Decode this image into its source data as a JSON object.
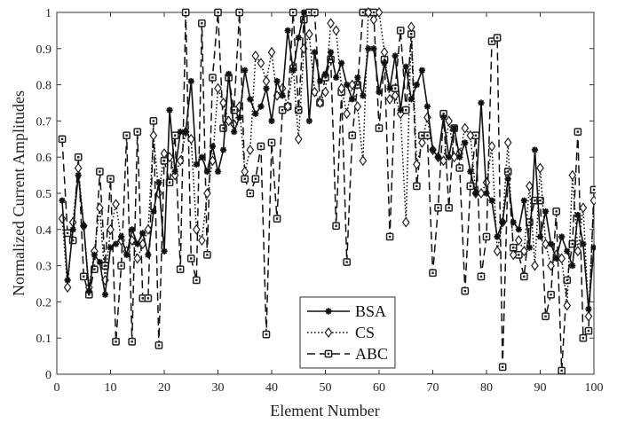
{
  "chart_data": {
    "type": "line",
    "xlabel": "Element Number",
    "ylabel": "Normalized Current Amplitudes",
    "xlim": [
      0,
      100
    ],
    "ylim": [
      0,
      1
    ],
    "xticks": [
      0,
      10,
      20,
      30,
      40,
      50,
      60,
      70,
      80,
      90,
      100
    ],
    "yticks": [
      0,
      0.1,
      0.2,
      0.3,
      0.4,
      0.5,
      0.6,
      0.7,
      0.8,
      0.9,
      1
    ],
    "grid": false,
    "legend_position": "bottom-center",
    "x": [
      1,
      2,
      3,
      4,
      5,
      6,
      7,
      8,
      9,
      10,
      11,
      12,
      13,
      14,
      15,
      16,
      17,
      18,
      19,
      20,
      21,
      22,
      23,
      24,
      25,
      26,
      27,
      28,
      29,
      30,
      31,
      32,
      33,
      34,
      35,
      36,
      37,
      38,
      39,
      40,
      41,
      42,
      43,
      44,
      45,
      46,
      47,
      48,
      49,
      50,
      51,
      52,
      53,
      54,
      55,
      56,
      57,
      58,
      59,
      60,
      61,
      62,
      63,
      64,
      65,
      66,
      67,
      68,
      69,
      70,
      71,
      72,
      73,
      74,
      75,
      76,
      77,
      78,
      79,
      80,
      81,
      82,
      83,
      84,
      85,
      86,
      87,
      88,
      89,
      90,
      91,
      92,
      93,
      94,
      95,
      96,
      97,
      98,
      99,
      100
    ],
    "series": [
      {
        "name": "BSA",
        "line_style": "solid",
        "marker": "asterisk",
        "values": [
          0.48,
          0.26,
          0.4,
          0.55,
          0.41,
          0.23,
          0.33,
          0.31,
          0.22,
          0.35,
          0.36,
          0.38,
          0.33,
          0.4,
          0.36,
          0.39,
          0.33,
          0.45,
          0.53,
          0.34,
          0.73,
          0.56,
          0.67,
          0.67,
          0.81,
          0.58,
          0.6,
          0.56,
          0.63,
          0.56,
          0.62,
          0.83,
          0.67,
          0.71,
          0.84,
          0.76,
          0.72,
          0.74,
          0.79,
          0.7,
          0.81,
          0.77,
          0.95,
          0.84,
          0.93,
          1.0,
          0.7,
          0.89,
          0.81,
          0.83,
          0.89,
          0.82,
          0.86,
          0.8,
          0.76,
          0.82,
          0.77,
          0.9,
          0.9,
          0.78,
          0.86,
          0.79,
          0.88,
          0.73,
          0.85,
          0.76,
          0.8,
          0.84,
          0.74,
          0.62,
          0.6,
          0.71,
          0.6,
          0.68,
          0.6,
          0.64,
          0.56,
          0.5,
          0.75,
          0.5,
          0.48,
          0.38,
          0.42,
          0.54,
          0.42,
          0.4,
          0.48,
          0.35,
          0.62,
          0.38,
          0.45,
          0.36,
          0.32,
          0.38,
          0.34,
          0.3,
          0.44,
          0.36,
          0.18,
          0.35
        ]
      },
      {
        "name": "CS",
        "line_style": "dotted",
        "marker": "diamond",
        "values": [
          0.43,
          0.24,
          0.42,
          0.57,
          0.41,
          0.24,
          0.34,
          0.46,
          0.26,
          0.4,
          0.47,
          0.37,
          0.34,
          0.37,
          0.32,
          0.36,
          0.4,
          0.66,
          0.5,
          0.61,
          0.6,
          0.55,
          0.59,
          0.67,
          0.65,
          0.4,
          0.37,
          0.5,
          0.59,
          0.79,
          0.75,
          0.7,
          0.69,
          0.74,
          0.56,
          0.62,
          0.88,
          0.86,
          0.81,
          0.89,
          0.77,
          0.79,
          0.74,
          0.85,
          0.65,
          0.9,
          0.94,
          0.78,
          0.75,
          0.78,
          0.97,
          0.95,
          0.79,
          0.72,
          0.8,
          0.74,
          0.59,
          1.0,
          0.98,
          1.0,
          0.89,
          0.76,
          0.77,
          0.72,
          0.42,
          0.96,
          0.58,
          0.64,
          0.71,
          0.62,
          0.6,
          0.59,
          0.7,
          0.6,
          0.61,
          0.68,
          0.66,
          0.5,
          0.5,
          0.53,
          0.63,
          0.34,
          0.42,
          0.64,
          0.33,
          0.37,
          0.34,
          0.52,
          0.3,
          0.57,
          0.36,
          0.3,
          0.33,
          0.32,
          0.19,
          0.55,
          0.34,
          0.46,
          0.16,
          0.48
        ]
      },
      {
        "name": "ABC",
        "line_style": "dashed",
        "marker": "square",
        "values": [
          0.65,
          0.39,
          0.37,
          0.6,
          0.27,
          0.22,
          0.29,
          0.56,
          0.3,
          0.54,
          0.09,
          0.3,
          0.66,
          0.09,
          0.67,
          0.21,
          0.21,
          0.7,
          0.08,
          0.59,
          0.53,
          0.66,
          0.29,
          1.0,
          0.32,
          0.26,
          0.97,
          0.33,
          0.82,
          1.0,
          0.68,
          0.82,
          0.73,
          1.0,
          0.54,
          0.5,
          0.54,
          0.63,
          0.11,
          0.64,
          0.43,
          0.73,
          0.74,
          1.0,
          0.73,
          0.98,
          1.0,
          1.0,
          0.75,
          0.82,
          0.87,
          0.41,
          0.78,
          0.31,
          0.66,
          0.8,
          1.0,
          1.0,
          1.0,
          0.68,
          0.87,
          0.38,
          0.79,
          0.95,
          0.73,
          0.94,
          0.52,
          0.66,
          0.66,
          0.28,
          0.46,
          0.72,
          0.46,
          0.68,
          0.57,
          0.23,
          0.52,
          0.66,
          0.27,
          0.38,
          0.92,
          0.93,
          0.02,
          0.56,
          0.35,
          0.33,
          0.27,
          0.42,
          0.48,
          0.48,
          0.16,
          0.22,
          0.45,
          0.01,
          0.26,
          0.36,
          0.67,
          0.1,
          0.12,
          0.51
        ]
      }
    ]
  }
}
